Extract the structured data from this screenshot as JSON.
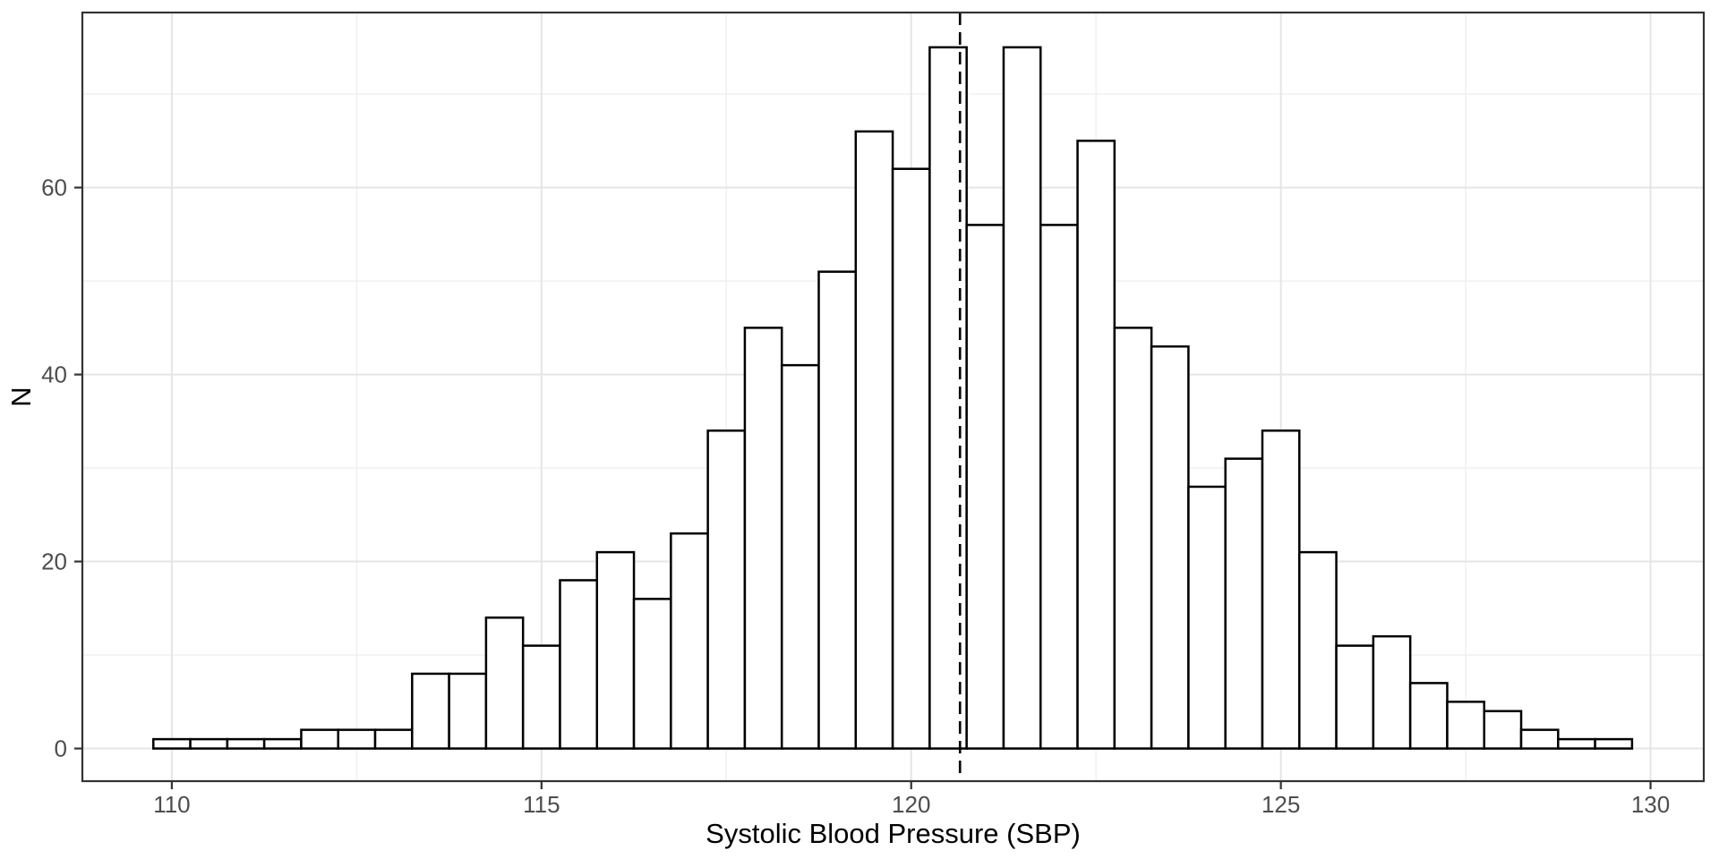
{
  "chart_data": {
    "type": "bar",
    "subtype": "histogram",
    "title": "",
    "xlabel": "Systolic Blood Pressure (SBP)",
    "ylabel": "N",
    "bin_width": 0.5,
    "bin_centers": [
      110.0,
      110.5,
      111.0,
      111.5,
      112.0,
      112.5,
      113.0,
      113.5,
      114.0,
      114.5,
      115.0,
      115.5,
      116.0,
      116.5,
      117.0,
      117.5,
      118.0,
      118.5,
      119.0,
      119.5,
      120.0,
      120.5,
      121.0,
      121.5,
      122.0,
      122.5,
      123.0,
      123.5,
      124.0,
      124.5,
      125.0,
      125.5,
      126.0,
      126.5,
      127.0,
      127.5,
      128.0,
      128.5,
      129.0,
      129.5
    ],
    "values": [
      1,
      1,
      1,
      1,
      2,
      2,
      2,
      8,
      8,
      14,
      11,
      18,
      21,
      16,
      23,
      34,
      45,
      41,
      51,
      66,
      62,
      75,
      56,
      75,
      56,
      65,
      45,
      43,
      28,
      31,
      34,
      21,
      11,
      12,
      7,
      5,
      4,
      2,
      1,
      1
    ],
    "total_n": 1000,
    "x_ticks": [
      110,
      115,
      120,
      125,
      130
    ],
    "x_tick_labels": [
      "110",
      "115",
      "120",
      "125",
      "130"
    ],
    "x_minor_ticks": [
      112.5,
      117.5,
      122.5,
      127.5
    ],
    "y_ticks": [
      0,
      20,
      40,
      60
    ],
    "y_tick_labels": [
      "0",
      "20",
      "40",
      "60"
    ],
    "y_minor_ticks": [
      10,
      30,
      50,
      70
    ],
    "xlim": [
      108.79,
      130.72
    ],
    "ylim": [
      -3.49,
      78.72
    ],
    "reference_line": {
      "x": 120.66,
      "style": "dashed",
      "orientation": "vertical"
    },
    "legend_position": "none",
    "grid": "on",
    "colors": {
      "background": "#ffffff",
      "panel_background": "#ffffff",
      "bar_fill": "#ffffff",
      "bar_stroke": "#000000",
      "grid_major": "#e5e5e5",
      "grid_minor": "#f0f0f0",
      "panel_border": "#333333",
      "axis_tick": "#333333",
      "tick_label": "#4d4d4d",
      "axis_title": "#000000",
      "reference_line": "#000000"
    }
  }
}
